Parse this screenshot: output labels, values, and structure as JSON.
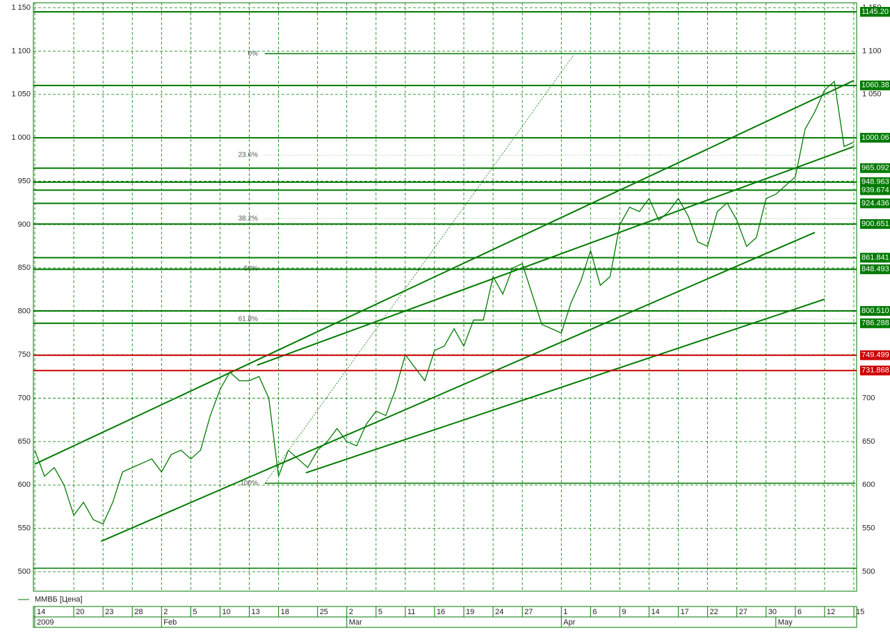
{
  "chart_data": {
    "type": "line",
    "series": [
      {
        "name": "ММВБ [Цена]",
        "color": "#007a00",
        "values": [
          640,
          610,
          620,
          600,
          565,
          580,
          560,
          555,
          580,
          615,
          620,
          625,
          630,
          615,
          635,
          640,
          630,
          640,
          680,
          710,
          730,
          720,
          720,
          725,
          700,
          610,
          640,
          630,
          620,
          640,
          650,
          665,
          650,
          645,
          670,
          685,
          680,
          710,
          750,
          735,
          720,
          755,
          760,
          780,
          760,
          790,
          790,
          840,
          820,
          850,
          855,
          820,
          785,
          780,
          775,
          810,
          835,
          870,
          830,
          840,
          900,
          920,
          915,
          930,
          905,
          915,
          930,
          910,
          880,
          875,
          915,
          925,
          905,
          875,
          885,
          930,
          935,
          945,
          955,
          1010,
          1030,
          1055,
          1065,
          990,
          995
        ]
      }
    ],
    "xlim": [
      0,
      84
    ],
    "xticks": [
      {
        "value": 0,
        "label": "14"
      },
      {
        "value": 4,
        "label": "20"
      },
      {
        "value": 7,
        "label": "23"
      },
      {
        "value": 10,
        "label": "28"
      },
      {
        "value": 13,
        "label": "2"
      },
      {
        "value": 16,
        "label": "5"
      },
      {
        "value": 19,
        "label": "10"
      },
      {
        "value": 22,
        "label": "13"
      },
      {
        "value": 25,
        "label": "18"
      },
      {
        "value": 29,
        "label": "25"
      },
      {
        "value": 32,
        "label": "2"
      },
      {
        "value": 35,
        "label": "5"
      },
      {
        "value": 38,
        "label": "11"
      },
      {
        "value": 41,
        "label": "16"
      },
      {
        "value": 44,
        "label": "19"
      },
      {
        "value": 47,
        "label": "24"
      },
      {
        "value": 50,
        "label": "27"
      },
      {
        "value": 54,
        "label": "1"
      },
      {
        "value": 57,
        "label": "6"
      },
      {
        "value": 60,
        "label": "9"
      },
      {
        "value": 63,
        "label": "14"
      },
      {
        "value": 66,
        "label": "17"
      },
      {
        "value": 69,
        "label": "22"
      },
      {
        "value": 72,
        "label": "27"
      },
      {
        "value": 75,
        "label": "30"
      },
      {
        "value": 78,
        "label": "6"
      },
      {
        "value": 81,
        "label": "12"
      },
      {
        "value": 84,
        "label": "15"
      }
    ],
    "months": [
      {
        "value": 0,
        "label": "2009"
      },
      {
        "value": 13,
        "label": "Feb"
      },
      {
        "value": 32,
        "label": "Mar"
      },
      {
        "value": 54,
        "label": "Apr"
      },
      {
        "value": 76,
        "label": "May"
      }
    ],
    "ylim": [
      480,
      1160
    ],
    "yticks": [
      500,
      550,
      600,
      650,
      700,
      750,
      800,
      850,
      900,
      950,
      {
        "value": 1000,
        "label": "1 000"
      },
      {
        "value": 1050,
        "label": "1 050"
      },
      {
        "value": 1100,
        "label": "1 100"
      },
      {
        "value": 1150,
        "label": "1 150"
      }
    ],
    "grid": true,
    "levels": [
      {
        "value": 1145.2,
        "label": "1145.20",
        "color": "#007a00"
      },
      {
        "value": 1060.38,
        "label": "1060.38",
        "color": "#007a00"
      },
      {
        "value": 1000.06,
        "label": "1000.06",
        "color": "#007a00"
      },
      {
        "value": 965.092,
        "label": "965.092",
        "color": "#007a00"
      },
      {
        "value": 948.963,
        "label": "948.963",
        "color": "#007a00"
      },
      {
        "value": 939.674,
        "label": "939.674",
        "color": "#007a00"
      },
      {
        "value": 924.436,
        "label": "924.436",
        "color": "#007a00"
      },
      {
        "value": 900.651,
        "label": "900.651",
        "color": "#007a00"
      },
      {
        "value": 861.841,
        "label": "861.841",
        "color": "#007a00"
      },
      {
        "value": 848.493,
        "label": "848.493",
        "color": "#007a00"
      },
      {
        "value": 800.51,
        "label": "800.510",
        "color": "#007a00"
      },
      {
        "value": 786.288,
        "label": "786.288",
        "color": "#007a00"
      },
      {
        "value": 749.499,
        "label": "749.499",
        "color": "#cc0000"
      },
      {
        "value": 731.868,
        "label": "731.868",
        "color": "#cc0000"
      }
    ],
    "extra_levels": [
      504
    ],
    "fib": {
      "x_start": 23.6,
      "levels": [
        {
          "value": 1097,
          "label": "0%"
        },
        {
          "value": 980,
          "label": "23.6%"
        },
        {
          "value": 907,
          "label": "38.2%"
        },
        {
          "value": 849,
          "label": "50%"
        },
        {
          "value": 791,
          "label": "61.8%"
        },
        {
          "value": 602,
          "label": "100%"
        }
      ]
    },
    "trendlines": [
      {
        "x": [
          0,
          84
        ],
        "y": [
          624,
          1066
        ]
      },
      {
        "x": [
          22.8,
          84
        ],
        "y": [
          738,
          990
        ]
      },
      {
        "x": [
          6.8,
          80
        ],
        "y": [
          535,
          891
        ]
      },
      {
        "x": [
          27.8,
          81
        ],
        "y": [
          614,
          814
        ]
      }
    ],
    "dotted_line": {
      "x": [
        23.6,
        55.3
      ],
      "y": [
        602,
        1096
      ]
    }
  }
}
